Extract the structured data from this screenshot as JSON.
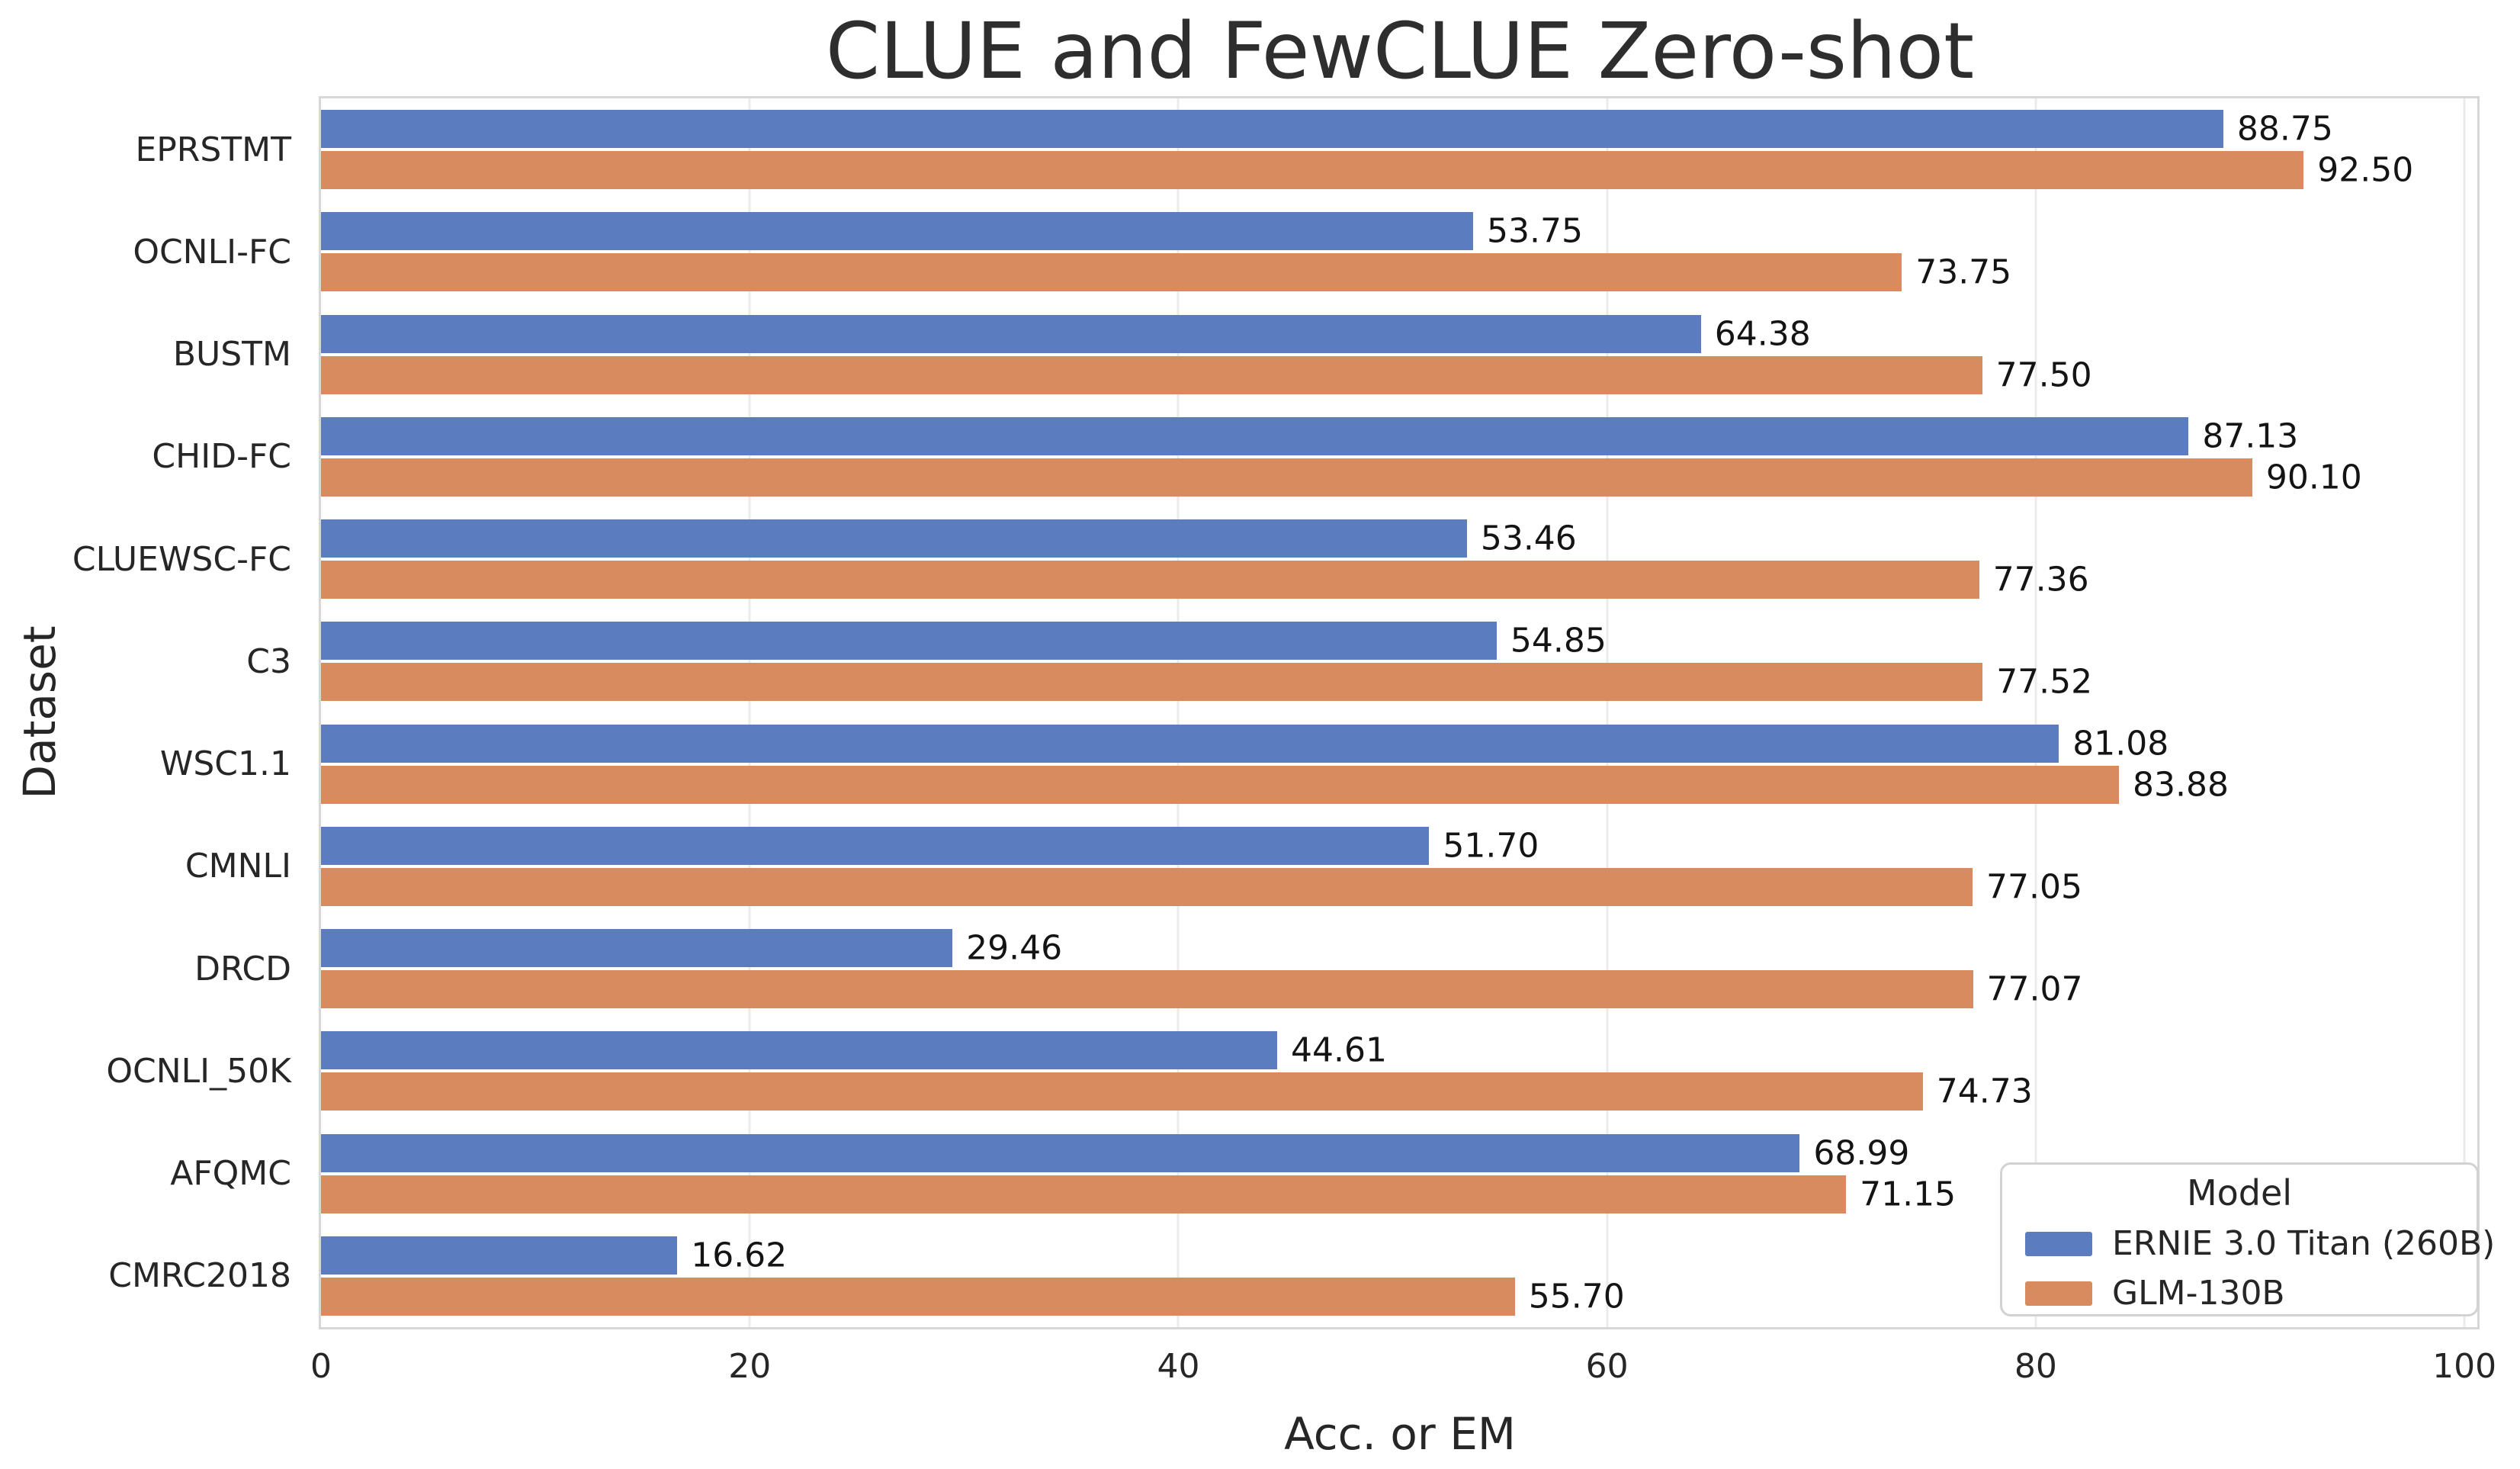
{
  "chart_data": {
    "type": "bar",
    "orientation": "horizontal",
    "title": "CLUE and FewCLUE Zero-shot",
    "xlabel": "Acc. or EM",
    "ylabel": "Dataset",
    "xlim": [
      0,
      100
    ],
    "xticks": [
      0,
      20,
      40,
      60,
      80,
      100
    ],
    "grid": "vertical-light-gray",
    "value_labels": "at bar end, 2 decimals",
    "categories": [
      "EPRSTMT",
      "OCNLI-FC",
      "BUSTM",
      "CHID-FC",
      "CLUEWSC-FC",
      "C3",
      "WSC1.1",
      "CMNLI",
      "DRCD",
      "OCNLI_50K",
      "AFQMC",
      "CMRC2018"
    ],
    "series": [
      {
        "name": "ERNIE 3.0 Titan (260B)",
        "color": "#5b7cbe",
        "values": [
          88.75,
          53.75,
          64.38,
          87.13,
          53.46,
          54.85,
          81.08,
          51.7,
          29.46,
          44.61,
          68.99,
          16.62
        ]
      },
      {
        "name": "GLM-130B",
        "color": "#d88b5f",
        "values": [
          92.5,
          73.75,
          77.5,
          90.1,
          77.36,
          77.52,
          83.88,
          77.05,
          77.07,
          74.73,
          71.15,
          55.7
        ]
      }
    ],
    "legend": {
      "title": "Model",
      "position": "lower-right"
    }
  }
}
